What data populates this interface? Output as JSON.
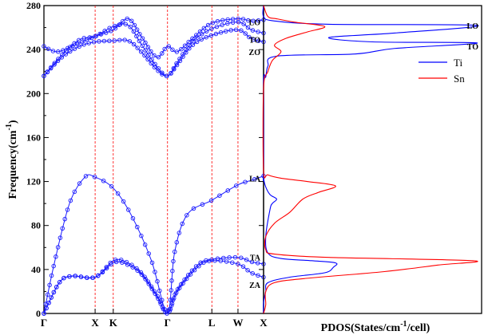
{
  "chart_data": [
    {
      "type": "line",
      "panel": "phonon-dispersion",
      "ylabel": "Frequency(cm",
      "ylabel_sup": "-1",
      "ylabel_close": ")",
      "ylim": [
        0,
        280
      ],
      "yticks": [
        0,
        40,
        80,
        120,
        160,
        200,
        240,
        280
      ],
      "ytick_labels": [
        "0",
        "40",
        "80",
        "120",
        "160",
        "200",
        "240",
        "280"
      ],
      "x_high_symmetry_points": [
        "Γ",
        "X",
        "K",
        "Γ",
        "L",
        "W",
        "X"
      ],
      "x_high_symmetry_positions": [
        0,
        1,
        1.354,
        2.414,
        3.28,
        3.79,
        4.29
      ],
      "dashed_vertical_lines_at": [
        1,
        1.354,
        2.414,
        3.28,
        3.79
      ],
      "mode_labels": [
        {
          "text": "LO",
          "y": 265
        },
        {
          "text": "TO",
          "y": 249
        },
        {
          "text": "ZO",
          "y": 238
        },
        {
          "text": "LA",
          "y": 123
        },
        {
          "text": "TA",
          "y": 51
        },
        {
          "text": "ZA",
          "y": 26
        }
      ],
      "series_keypoints": {
        "ZA": [
          [
            0,
            0
          ],
          [
            0.3,
            28
          ],
          [
            0.55,
            34
          ],
          [
            1,
            33
          ],
          [
            1.354,
            46
          ],
          [
            1.6,
            45
          ],
          [
            1.9,
            36
          ],
          [
            2.2,
            16
          ],
          [
            2.414,
            0
          ],
          [
            2.6,
            20
          ],
          [
            3.0,
            42
          ],
          [
            3.28,
            48
          ],
          [
            3.79,
            45
          ],
          [
            4.05,
            37
          ],
          [
            4.29,
            33
          ]
        ],
        "TA": [
          [
            0,
            0
          ],
          [
            0.3,
            28
          ],
          [
            0.55,
            34
          ],
          [
            1,
            33
          ],
          [
            1.354,
            48
          ],
          [
            1.6,
            47
          ],
          [
            1.9,
            37
          ],
          [
            2.2,
            17
          ],
          [
            2.414,
            0
          ],
          [
            2.6,
            21
          ],
          [
            3.0,
            44
          ],
          [
            3.28,
            49
          ],
          [
            3.79,
            51
          ],
          [
            4.05,
            47
          ],
          [
            4.29,
            45
          ]
        ],
        "LA": [
          [
            0,
            0
          ],
          [
            0.2,
            45
          ],
          [
            0.5,
            100
          ],
          [
            0.8,
            124
          ],
          [
            1,
            124
          ],
          [
            1.354,
            114
          ],
          [
            1.7,
            90
          ],
          [
            2.1,
            48
          ],
          [
            2.414,
            0
          ],
          [
            2.55,
            55
          ],
          [
            2.8,
            90
          ],
          [
            3.28,
            103
          ],
          [
            3.79,
            117
          ],
          [
            4.05,
            121
          ],
          [
            4.29,
            125
          ]
        ],
        "ZO": [
          [
            0,
            216
          ],
          [
            0.35,
            233
          ],
          [
            0.7,
            243
          ],
          [
            1,
            247
          ],
          [
            1.354,
            248
          ],
          [
            1.65,
            248
          ],
          [
            1.9,
            238
          ],
          [
            2.2,
            222
          ],
          [
            2.414,
            216
          ],
          [
            2.6,
            226
          ],
          [
            2.9,
            244
          ],
          [
            3.28,
            253
          ],
          [
            3.79,
            258
          ],
          [
            4.05,
            250
          ],
          [
            4.29,
            247
          ]
        ],
        "TO": [
          [
            0,
            216
          ],
          [
            0.35,
            235
          ],
          [
            0.7,
            249
          ],
          [
            1,
            252
          ],
          [
            1.354,
            261
          ],
          [
            1.65,
            262
          ],
          [
            1.9,
            245
          ],
          [
            2.2,
            225
          ],
          [
            2.414,
            216
          ],
          [
            2.6,
            228
          ],
          [
            2.9,
            247
          ],
          [
            3.28,
            259
          ],
          [
            3.79,
            265
          ],
          [
            4.05,
            258
          ],
          [
            4.29,
            255
          ]
        ],
        "LO": [
          [
            0,
            243
          ],
          [
            0.25,
            238
          ],
          [
            0.55,
            243
          ],
          [
            1,
            252
          ],
          [
            1.354,
            258
          ],
          [
            1.65,
            268
          ],
          [
            1.9,
            252
          ],
          [
            2.2,
            233
          ],
          [
            2.414,
            243
          ],
          [
            2.6,
            238
          ],
          [
            2.9,
            250
          ],
          [
            3.28,
            264
          ],
          [
            3.79,
            268
          ],
          [
            4.05,
            266
          ],
          [
            4.29,
            267
          ]
        ]
      },
      "line_color": "#1a1aff",
      "marker_color": "#1a1aff",
      "dashed_line_color": "#ff0000"
    },
    {
      "type": "line",
      "panel": "pdos",
      "xlabel": "PDOS(States/cm",
      "xlabel_sup": "-1",
      "xlabel_close": "/cell)",
      "ylim": [
        0,
        280
      ],
      "legend": {
        "position": "top-right",
        "entries": [
          {
            "name": "Ti",
            "color": "#0000ff"
          },
          {
            "name": "Sn",
            "color": "#ff0000"
          }
        ]
      },
      "annotations": [
        {
          "text": "LO",
          "y": 262
        },
        {
          "text": "TO",
          "y": 243
        }
      ],
      "series": [
        {
          "name": "Ti",
          "color": "#0000ff",
          "keypoints": [
            [
              0,
              0
            ],
            [
              0,
              10
            ],
            [
              0.01,
              20
            ],
            [
              0.02,
              28
            ],
            [
              0.12,
              33
            ],
            [
              0.28,
              37
            ],
            [
              0.32,
              42
            ],
            [
              0.33,
              46
            ],
            [
              0.22,
              48
            ],
            [
              0.08,
              50
            ],
            [
              0.02,
              55
            ],
            [
              0.01,
              70
            ],
            [
              0.03,
              95
            ],
            [
              0.04,
              100
            ],
            [
              0.06,
              104
            ],
            [
              0.03,
              108
            ],
            [
              0.01,
              115
            ],
            [
              0.0,
              123
            ],
            [
              0.0,
              128
            ],
            [
              0.0,
              210
            ],
            [
              0.01,
              215
            ],
            [
              0.02,
              225
            ],
            [
              0.06,
              234
            ],
            [
              0.42,
              236
            ],
            [
              0.6,
              241
            ],
            [
              0.98,
              246
            ],
            [
              0.5,
              247
            ],
            [
              0.3,
              251
            ],
            [
              0.6,
              255
            ],
            [
              0.98,
              262
            ],
            [
              0.3,
              263
            ],
            [
              0.05,
              266
            ],
            [
              0.0,
              270
            ],
            [
              0.0,
              280
            ]
          ]
        },
        {
          "name": "Sn",
          "color": "#ff0000",
          "keypoints": [
            [
              0,
              0
            ],
            [
              0.01,
              8
            ],
            [
              0.01,
              20
            ],
            [
              0.05,
              28
            ],
            [
              0.2,
              32
            ],
            [
              0.55,
              38
            ],
            [
              0.8,
              44
            ],
            [
              0.96,
              48
            ],
            [
              0.3,
              51
            ],
            [
              0.05,
              54
            ],
            [
              0.01,
              58
            ],
            [
              0.01,
              70
            ],
            [
              0.05,
              82
            ],
            [
              0.12,
              92
            ],
            [
              0.18,
              104
            ],
            [
              0.25,
              110
            ],
            [
              0.33,
              116
            ],
            [
              0.2,
              120
            ],
            [
              0.08,
              123
            ],
            [
              0.02,
              126
            ],
            [
              0.0,
              130
            ],
            [
              0.0,
              205
            ],
            [
              0.02,
              220
            ],
            [
              0.04,
              230
            ],
            [
              0.08,
              238
            ],
            [
              0.05,
              244
            ],
            [
              0.1,
              250
            ],
            [
              0.2,
              256
            ],
            [
              0.28,
              261
            ],
            [
              0.14,
              265
            ],
            [
              0.06,
              268
            ],
            [
              0.02,
              270
            ],
            [
              0.0,
              280
            ]
          ]
        }
      ]
    }
  ]
}
